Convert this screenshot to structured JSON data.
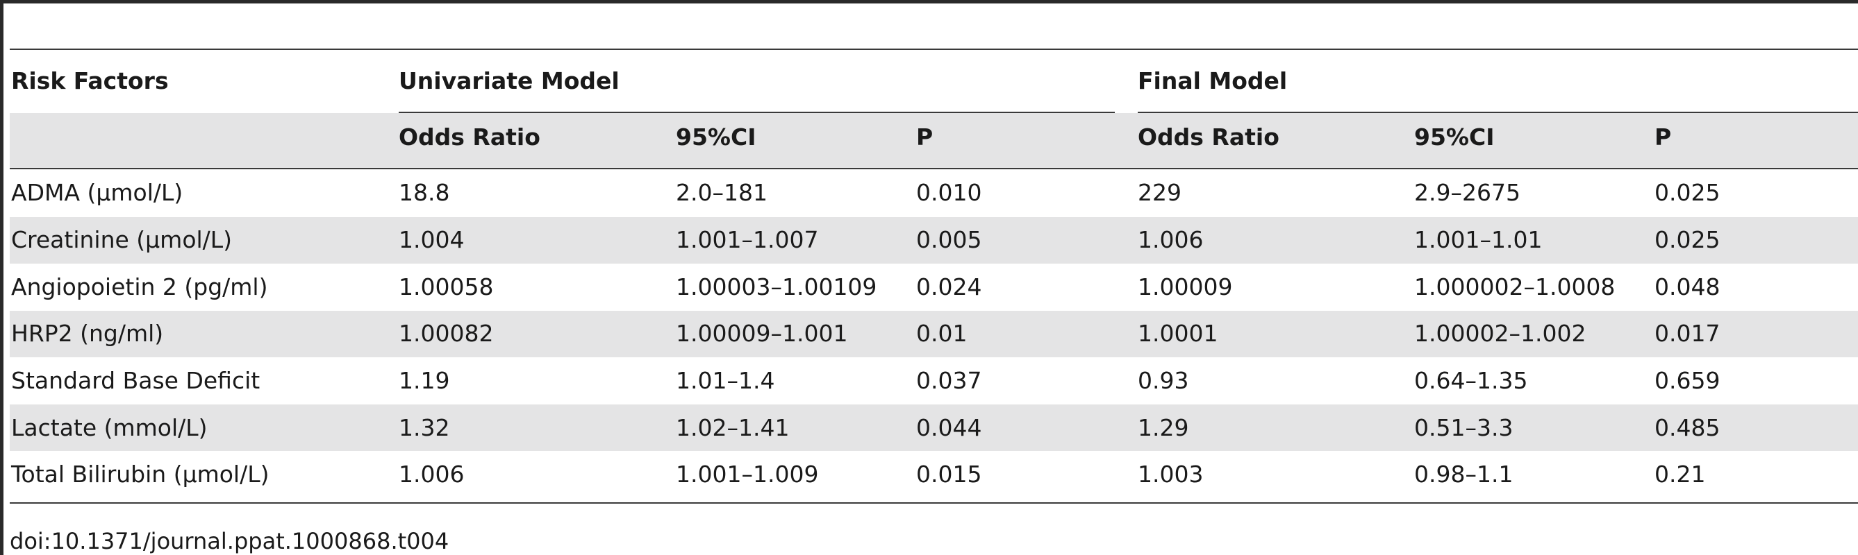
{
  "table": {
    "header": {
      "risk_factors": "Risk Factors",
      "univariate_model": "Univariate Model",
      "final_model": "Final Model",
      "sub_columns": [
        "Odds Ratio",
        "95%CI",
        "P",
        "Odds Ratio",
        "95%CI",
        "P"
      ]
    },
    "rows": [
      {
        "factor": "ADMA (μmol/L)",
        "uni_or": "18.8",
        "uni_ci": "2.0–181",
        "uni_p": "0.010",
        "fin_or": "229",
        "fin_ci": "2.9–2675",
        "fin_p": "0.025"
      },
      {
        "factor": "Creatinine (μmol/L)",
        "uni_or": "1.004",
        "uni_ci": "1.001–1.007",
        "uni_p": "0.005",
        "fin_or": "1.006",
        "fin_ci": "1.001–1.01",
        "fin_p": "0.025"
      },
      {
        "factor": "Angiopoietin 2 (pg/ml)",
        "uni_or": "1.00058",
        "uni_ci": "1.00003–1.00109",
        "uni_p": "0.024",
        "fin_or": "1.00009",
        "fin_ci": "1.000002–1.0008",
        "fin_p": "0.048"
      },
      {
        "factor": "HRP2 (ng/ml)",
        "uni_or": "1.00082",
        "uni_ci": "1.00009–1.001",
        "uni_p": "0.01",
        "fin_or": "1.0001",
        "fin_ci": "1.00002–1.002",
        "fin_p": "0.017"
      },
      {
        "factor": "Standard Base Deficit",
        "uni_or": "1.19",
        "uni_ci": "1.01–1.4",
        "uni_p": "0.037",
        "fin_or": "0.93",
        "fin_ci": "0.64–1.35",
        "fin_p": "0.659"
      },
      {
        "factor": "Lactate (mmol/L)",
        "uni_or": "1.32",
        "uni_ci": "1.02–1.41",
        "uni_p": "0.044",
        "fin_or": "1.29",
        "fin_ci": "0.51–3.3",
        "fin_p": "0.485"
      },
      {
        "factor": "Total Bilirubin (μmol/L)",
        "uni_or": "1.006",
        "uni_ci": "1.001–1.009",
        "uni_p": "0.015",
        "fin_or": "1.003",
        "fin_ci": "0.98–1.1",
        "fin_p": "0.21"
      }
    ]
  },
  "caption": "doi:10.1371/journal.ppat.1000868.t004"
}
